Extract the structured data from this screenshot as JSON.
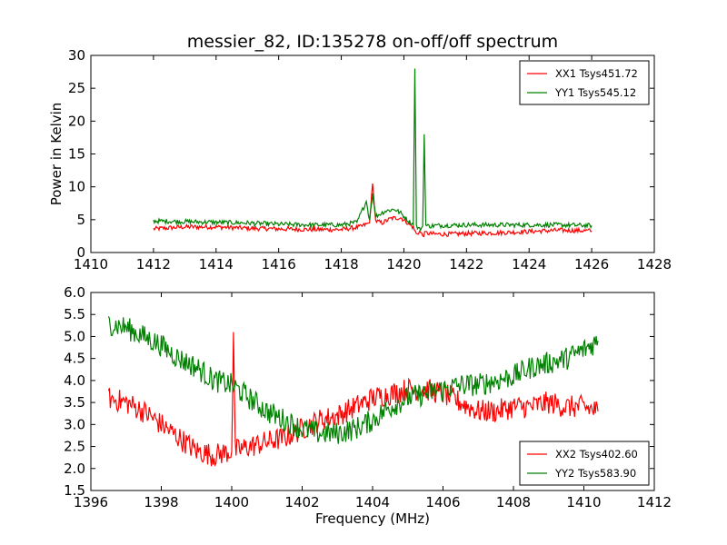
{
  "title": "messier_82, ID:135278 on-off/off spectrum",
  "chart_data": [
    {
      "type": "line",
      "title": "messier_82, ID:135278 on-off/off spectrum",
      "xlabel": "",
      "ylabel": "Power in Kelvin",
      "xlim": [
        1410,
        1428
      ],
      "ylim": [
        0,
        30
      ],
      "xticks": [
        "1410",
        "1412",
        "1414",
        "1416",
        "1418",
        "1420",
        "1422",
        "1424",
        "1426",
        "1428"
      ],
      "yticks": [
        "0",
        "5",
        "10",
        "15",
        "20",
        "25",
        "30"
      ],
      "grid": false,
      "legend": "top-right",
      "series": [
        {
          "name": "XX1 Tsys451.72",
          "color": "#ff0000",
          "x": [
            1412.0,
            1413.0,
            1414.0,
            1415.0,
            1416.0,
            1417.0,
            1418.0,
            1418.6,
            1418.9,
            1419.0,
            1419.1,
            1419.3,
            1419.6,
            1419.9,
            1420.1,
            1420.3,
            1420.4,
            1420.5,
            1420.6,
            1420.7,
            1420.8,
            1421.0,
            1421.5,
            1422.0,
            1423.0,
            1424.0,
            1425.0,
            1426.0
          ],
          "y": [
            3.6,
            3.9,
            3.9,
            3.7,
            3.6,
            3.5,
            3.5,
            3.9,
            4.5,
            10.5,
            4.8,
            4.5,
            5.2,
            5.3,
            4.6,
            3.8,
            2.8,
            3.2,
            2.6,
            3.0,
            2.9,
            2.8,
            2.8,
            2.9,
            3.0,
            3.2,
            3.4,
            3.3
          ]
        },
        {
          "name": "YY1 Tsys545.12",
          "color": "#008000",
          "x": [
            1412.0,
            1413.0,
            1414.0,
            1415.0,
            1416.0,
            1417.0,
            1418.0,
            1418.5,
            1418.8,
            1418.9,
            1419.0,
            1419.1,
            1419.4,
            1419.7,
            1419.9,
            1420.1,
            1420.3,
            1420.35,
            1420.4,
            1420.5,
            1420.6,
            1420.65,
            1420.7,
            1420.8,
            1421.0,
            1422.0,
            1423.0,
            1424.0,
            1425.0,
            1426.0
          ],
          "y": [
            4.8,
            4.7,
            4.6,
            4.5,
            4.3,
            4.2,
            4.2,
            4.6,
            7.8,
            5.0,
            9.0,
            5.5,
            6.3,
            6.6,
            6.0,
            5.0,
            4.2,
            28.0,
            4.0,
            3.5,
            4.0,
            18.0,
            4.1,
            4.0,
            4.1,
            4.2,
            4.2,
            4.2,
            4.2,
            4.1
          ]
        }
      ]
    },
    {
      "type": "line",
      "title": "",
      "xlabel": "Frequency (MHz)",
      "ylabel": "",
      "xlim": [
        1396,
        1412
      ],
      "ylim": [
        1.5,
        6.0
      ],
      "xticks": [
        "1396",
        "1398",
        "1400",
        "1402",
        "1404",
        "1406",
        "1408",
        "1410",
        "1412"
      ],
      "yticks": [
        "1.5",
        "2.0",
        "2.5",
        "3.0",
        "3.5",
        "4.0",
        "4.5",
        "5.0",
        "5.5",
        "6.0"
      ],
      "grid": false,
      "legend": "bottom-right",
      "series": [
        {
          "name": "XX2 Tsys402.60",
          "color": "#ff0000",
          "x": [
            1396.5,
            1397.0,
            1397.5,
            1398.0,
            1398.5,
            1399.0,
            1399.5,
            1400.0,
            1400.05,
            1400.1,
            1400.5,
            1401.0,
            1401.5,
            1402.0,
            1402.5,
            1403.0,
            1403.5,
            1404.0,
            1404.5,
            1405.0,
            1405.5,
            1406.0,
            1406.5,
            1407.0,
            1407.5,
            1408.0,
            1408.5,
            1409.0,
            1409.5,
            1410.0,
            1410.4
          ],
          "y": [
            3.6,
            3.5,
            3.3,
            3.0,
            2.7,
            2.4,
            2.3,
            2.4,
            5.1,
            2.4,
            2.5,
            2.6,
            2.7,
            2.9,
            3.1,
            3.2,
            3.4,
            3.6,
            3.7,
            3.8,
            3.8,
            3.7,
            3.5,
            3.3,
            3.3,
            3.4,
            3.4,
            3.5,
            3.4,
            3.4,
            3.3
          ]
        },
        {
          "name": "YY2 Tsys583.90",
          "color": "#008000",
          "x": [
            1396.5,
            1397.0,
            1397.5,
            1398.0,
            1398.5,
            1399.0,
            1399.5,
            1400.0,
            1400.5,
            1401.0,
            1401.5,
            1402.0,
            1402.5,
            1403.0,
            1403.5,
            1404.0,
            1404.5,
            1405.0,
            1405.5,
            1406.0,
            1406.5,
            1407.0,
            1407.5,
            1408.0,
            1408.5,
            1409.0,
            1409.5,
            1410.0,
            1410.4
          ],
          "y": [
            5.3,
            5.2,
            5.0,
            4.8,
            4.5,
            4.3,
            4.0,
            3.9,
            3.6,
            3.3,
            3.1,
            2.9,
            2.8,
            2.8,
            2.9,
            3.1,
            3.4,
            3.6,
            3.7,
            3.8,
            3.9,
            3.9,
            4.0,
            4.1,
            4.3,
            4.4,
            4.5,
            4.7,
            4.9
          ]
        }
      ]
    }
  ]
}
